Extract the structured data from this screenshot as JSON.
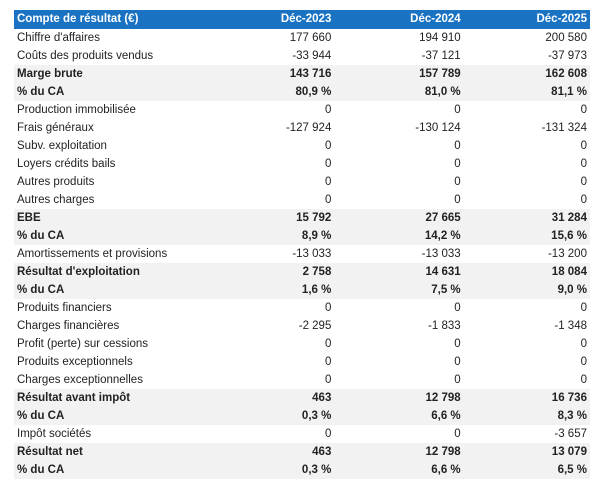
{
  "header": {
    "title": "Compte de résultat (€)",
    "columns": [
      "Déc-2023",
      "Déc-2024",
      "Déc-2025"
    ]
  },
  "colors": {
    "header_bg": "#1a73c2",
    "shade_bg": "#f2f2f2"
  },
  "rows": [
    {
      "label": "Chiffre d'affaires",
      "values": [
        "177 660",
        "194 910",
        "200 580"
      ],
      "bold": false,
      "shade": false
    },
    {
      "label": "Coûts des produits vendus",
      "values": [
        "-33 944",
        "-37 121",
        "-37 973"
      ],
      "bold": false,
      "shade": false
    },
    {
      "label": "Marge brute",
      "values": [
        "143 716",
        "157 789",
        "162 608"
      ],
      "bold": true,
      "shade": true
    },
    {
      "label": "% du CA",
      "values": [
        "80,9 %",
        "81,0 %",
        "81,1 %"
      ],
      "bold": true,
      "shade": true
    },
    {
      "label": "Production immobilisée",
      "values": [
        "0",
        "0",
        "0"
      ],
      "bold": false,
      "shade": false
    },
    {
      "label": "Frais généraux",
      "values": [
        "-127 924",
        "-130 124",
        "-131 324"
      ],
      "bold": false,
      "shade": false
    },
    {
      "label": "Subv. exploitation",
      "values": [
        "0",
        "0",
        "0"
      ],
      "bold": false,
      "shade": false
    },
    {
      "label": "Loyers crédits bails",
      "values": [
        "0",
        "0",
        "0"
      ],
      "bold": false,
      "shade": false
    },
    {
      "label": "Autres produits",
      "values": [
        "0",
        "0",
        "0"
      ],
      "bold": false,
      "shade": false
    },
    {
      "label": "Autres charges",
      "values": [
        "0",
        "0",
        "0"
      ],
      "bold": false,
      "shade": false
    },
    {
      "label": "EBE",
      "values": [
        "15 792",
        "27 665",
        "31 284"
      ],
      "bold": true,
      "shade": true
    },
    {
      "label": "% du CA",
      "values": [
        "8,9 %",
        "14,2 %",
        "15,6 %"
      ],
      "bold": true,
      "shade": true
    },
    {
      "label": "Amortissements et provisions",
      "values": [
        "-13 033",
        "-13 033",
        "-13 200"
      ],
      "bold": false,
      "shade": false
    },
    {
      "label": "Résultat d'exploitation",
      "values": [
        "2 758",
        "14 631",
        "18 084"
      ],
      "bold": true,
      "shade": true
    },
    {
      "label": "% du CA",
      "values": [
        "1,6 %",
        "7,5 %",
        "9,0 %"
      ],
      "bold": true,
      "shade": true
    },
    {
      "label": "Produits financiers",
      "values": [
        "0",
        "0",
        "0"
      ],
      "bold": false,
      "shade": false
    },
    {
      "label": "Charges financières",
      "values": [
        "-2 295",
        "-1 833",
        "-1 348"
      ],
      "bold": false,
      "shade": false
    },
    {
      "label": "Profit (perte) sur cessions",
      "values": [
        "0",
        "0",
        "0"
      ],
      "bold": false,
      "shade": false
    },
    {
      "label": "Produits exceptionnels",
      "values": [
        "0",
        "0",
        "0"
      ],
      "bold": false,
      "shade": false
    },
    {
      "label": "Charges exceptionnelles",
      "values": [
        "0",
        "0",
        "0"
      ],
      "bold": false,
      "shade": false
    },
    {
      "label": "Résultat avant impôt",
      "values": [
        "463",
        "12 798",
        "16 736"
      ],
      "bold": true,
      "shade": true
    },
    {
      "label": "% du CA",
      "values": [
        "0,3 %",
        "6,6 %",
        "8,3 %"
      ],
      "bold": true,
      "shade": true
    },
    {
      "label": "Impôt sociétés",
      "values": [
        "0",
        "0",
        "-3 657"
      ],
      "bold": false,
      "shade": false
    },
    {
      "label": "Résultat net",
      "values": [
        "463",
        "12 798",
        "13 079"
      ],
      "bold": true,
      "shade": true
    },
    {
      "label": "% du CA",
      "values": [
        "0,3 %",
        "6,6 %",
        "6,5 %"
      ],
      "bold": true,
      "shade": true
    }
  ]
}
